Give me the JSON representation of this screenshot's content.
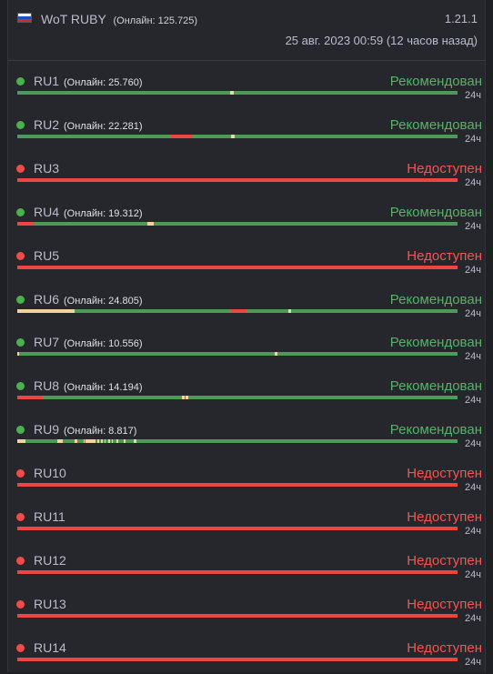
{
  "colors": {
    "green": "#4caf50",
    "red": "#ef4b48",
    "bar_green": "#4f9a5b",
    "bar_red": "#ee4444",
    "bar_yellow": "#f2d39a",
    "text_recommended": "#56b26a",
    "text_unavailable": "#f25555"
  },
  "header": {
    "flag_icon": "russia-flag-icon",
    "title": "WoT RUBY",
    "online": "(Онлайн: 125.725)",
    "version": "1.21.1",
    "date": "25 авг. 2023 00:59 (12 часов назад)"
  },
  "servers": [
    {
      "name": "RU1",
      "online": "(Онлайн: 25.760)",
      "status": "Рекомендован",
      "state": "ok",
      "range": "24ч",
      "history": [
        {
          "from": 0,
          "to": 1,
          "c": "green"
        },
        {
          "from": 0.484,
          "to": 0.492,
          "c": "yellow"
        }
      ]
    },
    {
      "name": "RU2",
      "online": "(Онлайн: 22.281)",
      "status": "Рекомендован",
      "state": "ok",
      "range": "24ч",
      "history": [
        {
          "from": 0,
          "to": 1,
          "c": "green"
        },
        {
          "from": 0.35,
          "to": 0.398,
          "c": "red"
        },
        {
          "from": 0.486,
          "to": 0.494,
          "c": "yellow"
        }
      ]
    },
    {
      "name": "RU3",
      "online": "",
      "status": "Недоступен",
      "state": "down",
      "range": "24ч",
      "history": [
        {
          "from": 0,
          "to": 1,
          "c": "red"
        }
      ]
    },
    {
      "name": "RU4",
      "online": "(Онлайн: 19.312)",
      "status": "Рекомендован",
      "state": "ok",
      "range": "24ч",
      "history": [
        {
          "from": 0,
          "to": 1,
          "c": "green"
        },
        {
          "from": 0,
          "to": 0.04,
          "c": "red"
        },
        {
          "from": 0.296,
          "to": 0.31,
          "c": "yellow"
        }
      ]
    },
    {
      "name": "RU5",
      "online": "",
      "status": "Недоступен",
      "state": "down",
      "range": "24ч",
      "history": [
        {
          "from": 0,
          "to": 1,
          "c": "red"
        }
      ]
    },
    {
      "name": "RU6",
      "online": "(Онлайн: 24.805)",
      "status": "Рекомендован",
      "state": "ok",
      "range": "24ч",
      "history": [
        {
          "from": 0,
          "to": 1,
          "c": "green"
        },
        {
          "from": 0,
          "to": 0.13,
          "c": "yellow"
        },
        {
          "from": 0.486,
          "to": 0.52,
          "c": "red"
        },
        {
          "from": 0.615,
          "to": 0.621,
          "c": "yellow"
        }
      ]
    },
    {
      "name": "RU7",
      "online": "(Онлайн: 10.556)",
      "status": "Рекомендован",
      "state": "ok",
      "range": "24ч",
      "history": [
        {
          "from": 0,
          "to": 1,
          "c": "green"
        },
        {
          "from": 0,
          "to": 0.004,
          "c": "yellow"
        },
        {
          "from": 0.585,
          "to": 0.59,
          "c": "yellow"
        }
      ]
    },
    {
      "name": "RU8",
      "online": "(Онлайн: 14.194)",
      "status": "Рекомендован",
      "state": "ok",
      "range": "24ч",
      "history": [
        {
          "from": 0,
          "to": 1,
          "c": "green"
        },
        {
          "from": 0,
          "to": 0.058,
          "c": "red"
        },
        {
          "from": 0.373,
          "to": 0.38,
          "c": "yellow"
        },
        {
          "from": 0.383,
          "to": 0.388,
          "c": "yellow"
        }
      ]
    },
    {
      "name": "RU9",
      "online": "(Онлайн: 8.817)",
      "status": "Рекомендован",
      "state": "ok",
      "range": "24ч",
      "history": [
        {
          "from": 0,
          "to": 1,
          "c": "green"
        },
        {
          "from": 0,
          "to": 0.018,
          "c": "yellow"
        },
        {
          "from": 0.09,
          "to": 0.104,
          "c": "yellow"
        },
        {
          "from": 0.13,
          "to": 0.136,
          "c": "yellow"
        },
        {
          "from": 0.155,
          "to": 0.165,
          "c": "yellow"
        },
        {
          "from": 0.15,
          "to": 0.153,
          "c": "yellow"
        },
        {
          "from": 0.162,
          "to": 0.178,
          "c": "yellow"
        },
        {
          "from": 0.182,
          "to": 0.185,
          "c": "yellow"
        },
        {
          "from": 0.19,
          "to": 0.195,
          "c": "yellow"
        },
        {
          "from": 0.198,
          "to": 0.2,
          "c": "yellow"
        },
        {
          "from": 0.207,
          "to": 0.21,
          "c": "yellow"
        },
        {
          "from": 0.214,
          "to": 0.218,
          "c": "yellow"
        },
        {
          "from": 0.226,
          "to": 0.229,
          "c": "yellow"
        },
        {
          "from": 0.242,
          "to": 0.245,
          "c": "yellow"
        },
        {
          "from": 0.265,
          "to": 0.27,
          "c": "yellow"
        }
      ]
    },
    {
      "name": "RU10",
      "online": "",
      "status": "Недоступен",
      "state": "down",
      "range": "24ч",
      "history": [
        {
          "from": 0,
          "to": 1,
          "c": "red"
        }
      ]
    },
    {
      "name": "RU11",
      "online": "",
      "status": "Недоступен",
      "state": "down",
      "range": "24ч",
      "history": [
        {
          "from": 0,
          "to": 1,
          "c": "red"
        }
      ]
    },
    {
      "name": "RU12",
      "online": "",
      "status": "Недоступен",
      "state": "down",
      "range": "24ч",
      "history": [
        {
          "from": 0,
          "to": 1,
          "c": "red"
        }
      ]
    },
    {
      "name": "RU13",
      "online": "",
      "status": "Недоступен",
      "state": "down",
      "range": "24ч",
      "history": [
        {
          "from": 0,
          "to": 1,
          "c": "red"
        }
      ]
    },
    {
      "name": "RU14",
      "online": "",
      "status": "Недоступен",
      "state": "down",
      "range": "24ч",
      "history": [
        {
          "from": 0,
          "to": 1,
          "c": "red"
        }
      ]
    }
  ]
}
